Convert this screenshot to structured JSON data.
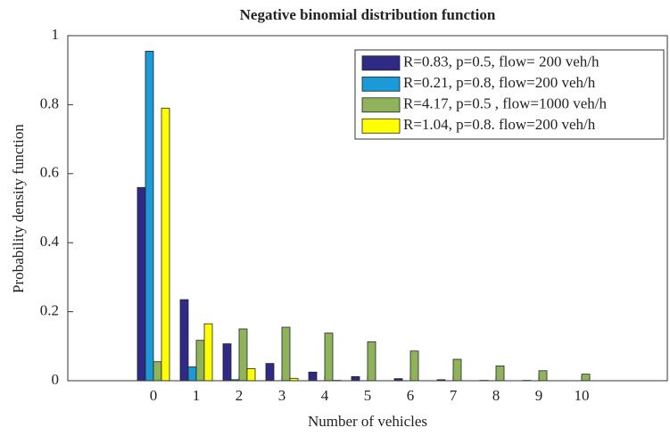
{
  "chart_data": {
    "type": "bar",
    "title": "Negative binomial distribution function",
    "xlabel": "Number of vehicles",
    "ylabel": "Probability density function",
    "x": [
      0,
      1,
      2,
      3,
      4,
      5,
      6,
      7,
      8,
      9,
      10
    ],
    "xlim": [
      -2,
      12
    ],
    "xticks": [
      0,
      1,
      2,
      3,
      4,
      5,
      6,
      7,
      8,
      9,
      10
    ],
    "ylim": [
      0,
      1
    ],
    "yticks": [
      0,
      0.2,
      0.4,
      0.6,
      0.8,
      1
    ],
    "legend": "upper right",
    "series": [
      {
        "name": "R=0.83, p=0.5, flow= 200 veh/h",
        "color": "#2e2a86",
        "values": [
          0.56,
          0.235,
          0.107,
          0.05,
          0.025,
          0.012,
          0.006,
          0.003,
          0.001,
          0.001,
          0.0
        ]
      },
      {
        "name": "R=0.21, p=0.8, flow=200 veh/h",
        "color": "#1a9ad6",
        "values": [
          0.955,
          0.04,
          0.003,
          0.0,
          0.0,
          0.0,
          0.0,
          0.0,
          0.0,
          0.0,
          0.0
        ]
      },
      {
        "name": "R=4.17, p=0.5 , flow=1000 veh/h",
        "color": "#8fb35a",
        "values": [
          0.055,
          0.117,
          0.15,
          0.155,
          0.138,
          0.113,
          0.086,
          0.062,
          0.043,
          0.029,
          0.019
        ]
      },
      {
        "name": "R=1.04, p=0.8. flow=200 veh/h",
        "color": "#ffff00",
        "values": [
          0.79,
          0.165,
          0.035,
          0.007,
          0.001,
          0.0,
          0.0,
          0.0,
          0.0,
          0.0,
          0.0
        ]
      }
    ]
  }
}
